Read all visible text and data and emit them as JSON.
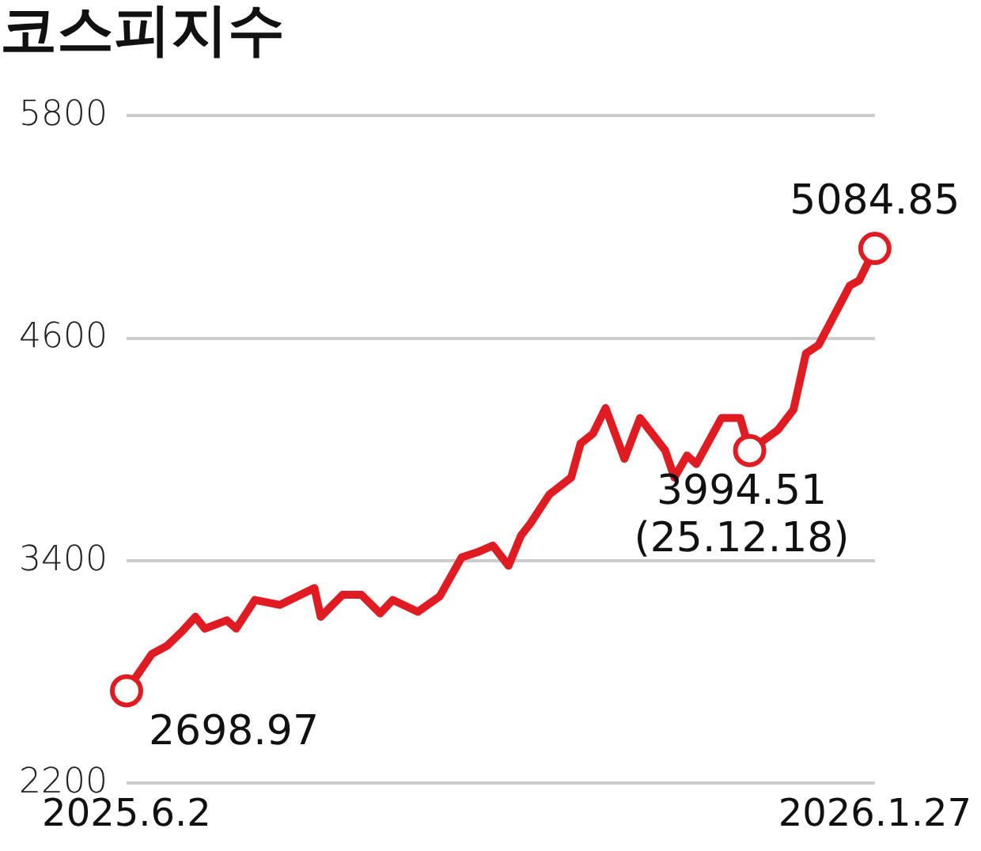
{
  "chart_data": {
    "type": "line",
    "title": "코스피지수",
    "x": [
      "2025-06-02",
      "2025-06-10",
      "2025-06-15",
      "2025-06-20",
      "2025-06-24",
      "2025-06-27",
      "2025-07-04",
      "2025-07-07",
      "2025-07-13",
      "2025-07-21",
      "2025-08-01",
      "2025-08-03",
      "2025-08-10",
      "2025-08-16",
      "2025-08-22",
      "2025-08-26",
      "2025-09-03",
      "2025-09-10",
      "2025-09-17",
      "2025-09-22",
      "2025-09-27",
      "2025-10-02",
      "2025-10-06",
      "2025-10-09",
      "2025-10-15",
      "2025-10-22",
      "2025-10-25",
      "2025-10-29",
      "2025-11-02",
      "2025-11-08",
      "2025-11-13",
      "2025-11-21",
      "2025-11-24",
      "2025-11-28",
      "2025-12-01",
      "2025-12-09",
      "2025-12-15",
      "2025-12-18",
      "2025-12-27",
      "2026-01-01",
      "2026-01-05",
      "2026-01-09",
      "2026-01-19",
      "2026-01-22",
      "2026-01-27"
    ],
    "series": [
      {
        "color": "#e01b22",
        "marker": "none",
        "values": [
          2698.97,
          2896,
          2942,
          3024,
          3098,
          3034,
          3079,
          3034,
          3189,
          3162,
          3253,
          3098,
          3217,
          3217,
          3116,
          3189,
          3125,
          3208,
          3418,
          3446,
          3482,
          3373,
          3537,
          3602,
          3757,
          3849,
          4032,
          4087,
          4224,
          3950,
          4170,
          3996,
          3849,
          3968,
          3922,
          4170,
          4170,
          3994.51,
          4105,
          4215,
          4518,
          4563,
          4884,
          4912,
          5084.85
        ]
      },
      {
        "type": "scatter",
        "color": "#e01b22",
        "marker": "circle",
        "x": [
          "2025-06-02",
          "2025-12-18",
          "2026-01-27"
        ],
        "values": [
          2698.97,
          3994.51,
          5084.85
        ]
      }
    ],
    "xlim": [
      "2025-06-02",
      "2026-01-27"
    ],
    "xticks": [
      {
        "value": "2025-06-02",
        "label": "2025.6.2"
      },
      {
        "value": "2026-01-27",
        "label": "2026.1.27"
      }
    ],
    "ylim": [
      2200,
      5800
    ],
    "yticks": [
      2200,
      3400,
      4600,
      5800
    ],
    "grid": "y",
    "legend": false,
    "annotations": [
      {
        "text": "5084.85",
        "x": "2026-01-27",
        "y": 5084.85
      },
      {
        "text": "3994.51\n(25.12.18)",
        "x": "2025-12-18",
        "y": 3994.51
      },
      {
        "text": "2698.97",
        "x": "2025-06-02",
        "y": 2698.97
      }
    ]
  }
}
